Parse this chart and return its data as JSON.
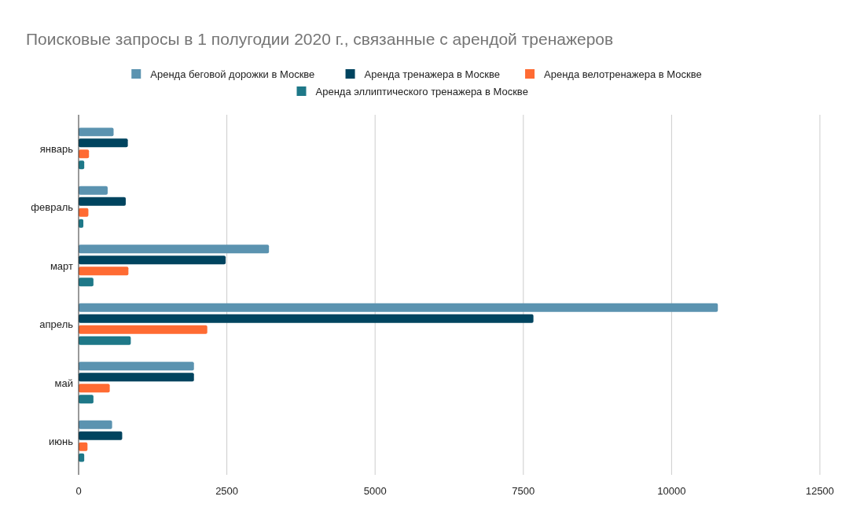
{
  "chart_data": {
    "type": "bar",
    "orientation": "horizontal",
    "title": "Поисковые запросы в 1 полугодии 2020 г., связанные с арендой тренажеров",
    "categories": [
      "январь",
      "февраль",
      "март",
      "апрель",
      "май",
      "июнь"
    ],
    "series": [
      {
        "name": "Аренда беговой дорожки в Москве",
        "color": "#5b93b0",
        "values": [
          590,
          490,
          3210,
          10780,
          1945,
          565
        ]
      },
      {
        "name": "Аренда тренажера в Москве",
        "color": "#00445f",
        "values": [
          830,
          795,
          2480,
          7670,
          1945,
          735
        ]
      },
      {
        "name": "Аренда велотренажера в Москве",
        "color": "#ff6b33",
        "values": [
          175,
          165,
          840,
          2170,
          525,
          150
        ]
      },
      {
        "name": "Аренда эллиптического тренажера в Москве",
        "color": "#1e7888",
        "values": [
          95,
          80,
          250,
          880,
          250,
          95
        ]
      }
    ],
    "xlim": [
      0,
      12500
    ],
    "xticks": [
      0,
      2500,
      5000,
      7500,
      10000,
      12500
    ],
    "grid": "x",
    "legend": "top"
  }
}
